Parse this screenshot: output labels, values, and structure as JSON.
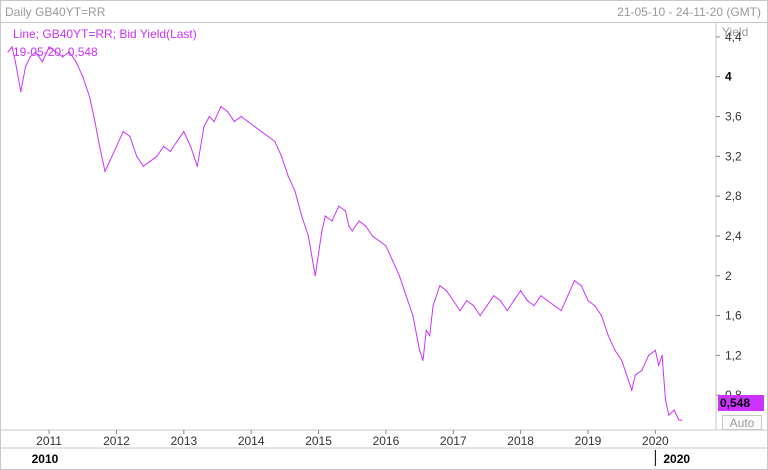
{
  "header": {
    "title": "Daily GB40YT=RR",
    "range": "21-05-10 - 24-11-20 (GMT)"
  },
  "legend": {
    "line1": "Line; GB40YT=RR; Bid Yield(Last)",
    "line2": "19-05-20; 0,548"
  },
  "last_value_badge": "0,548",
  "auto_button": "Auto",
  "colors": {
    "series": "#cc33ff",
    "badge": "#cc33ff"
  },
  "chart_data": {
    "type": "line",
    "ylabel": "Yield",
    "ylim": [
      0.45,
      4.55
    ],
    "yticks": [
      "4,4",
      "4",
      "3,6",
      "3,2",
      "2,8",
      "2,4",
      "2",
      "1,6",
      "1,2",
      "0,8"
    ],
    "ytick_values": [
      4.4,
      4.0,
      3.6,
      3.2,
      2.8,
      2.4,
      2.0,
      1.6,
      1.2,
      0.8
    ],
    "xlim": [
      2010.39,
      2020.9
    ],
    "xticks": [
      "2011",
      "2012",
      "2013",
      "2014",
      "2015",
      "2016",
      "2017",
      "2018",
      "2019",
      "2020"
    ],
    "xtick_values": [
      2011,
      2012,
      2013,
      2014,
      2015,
      2016,
      2017,
      2018,
      2019,
      2020
    ],
    "major_labels": [
      "2010",
      "2020"
    ],
    "series": [
      {
        "x": [
          2010.39,
          2010.45,
          2010.5,
          2010.58,
          2010.65,
          2010.72,
          2010.8,
          2010.9,
          2011.0,
          2011.1,
          2011.2,
          2011.3,
          2011.4,
          2011.5,
          2011.6,
          2011.68,
          2011.75,
          2011.83,
          2011.9,
          2012.0,
          2012.1,
          2012.2,
          2012.3,
          2012.4,
          2012.5,
          2012.6,
          2012.7,
          2012.8,
          2012.9,
          2013.0,
          2013.1,
          2013.2,
          2013.3,
          2013.38,
          2013.45,
          2013.55,
          2013.65,
          2013.75,
          2013.85,
          2013.95,
          2014.05,
          2014.15,
          2014.25,
          2014.35,
          2014.45,
          2014.55,
          2014.65,
          2014.75,
          2014.85,
          2014.95,
          2015.05,
          2015.1,
          2015.2,
          2015.3,
          2015.4,
          2015.45,
          2015.5,
          2015.6,
          2015.7,
          2015.8,
          2015.9,
          2016.0,
          2016.1,
          2016.2,
          2016.3,
          2016.4,
          2016.5,
          2016.55,
          2016.6,
          2016.65,
          2016.7,
          2016.8,
          2016.9,
          2017.0,
          2017.1,
          2017.2,
          2017.3,
          2017.4,
          2017.5,
          2017.6,
          2017.7,
          2017.8,
          2017.9,
          2018.0,
          2018.1,
          2018.2,
          2018.3,
          2018.4,
          2018.5,
          2018.6,
          2018.7,
          2018.8,
          2018.9,
          2019.0,
          2019.1,
          2019.2,
          2019.3,
          2019.4,
          2019.5,
          2019.6,
          2019.65,
          2019.7,
          2019.8,
          2019.9,
          2020.0,
          2020.05,
          2020.1,
          2020.15,
          2020.2,
          2020.28,
          2020.35,
          2020.39
        ],
        "y": [
          4.25,
          4.3,
          4.15,
          3.85,
          4.1,
          4.2,
          4.25,
          4.15,
          4.3,
          4.25,
          4.2,
          4.25,
          4.15,
          4.0,
          3.8,
          3.55,
          3.3,
          3.05,
          3.15,
          3.3,
          3.45,
          3.4,
          3.2,
          3.1,
          3.15,
          3.2,
          3.3,
          3.25,
          3.35,
          3.45,
          3.3,
          3.1,
          3.5,
          3.6,
          3.55,
          3.7,
          3.65,
          3.55,
          3.6,
          3.55,
          3.5,
          3.45,
          3.4,
          3.35,
          3.2,
          3.0,
          2.85,
          2.6,
          2.4,
          2.0,
          2.45,
          2.6,
          2.55,
          2.7,
          2.65,
          2.5,
          2.45,
          2.55,
          2.5,
          2.4,
          2.35,
          2.3,
          2.15,
          2.0,
          1.8,
          1.6,
          1.25,
          1.15,
          1.45,
          1.4,
          1.7,
          1.9,
          1.85,
          1.75,
          1.65,
          1.75,
          1.7,
          1.6,
          1.7,
          1.8,
          1.75,
          1.65,
          1.75,
          1.85,
          1.75,
          1.7,
          1.8,
          1.75,
          1.7,
          1.65,
          1.8,
          1.95,
          1.9,
          1.75,
          1.7,
          1.6,
          1.4,
          1.25,
          1.15,
          0.95,
          0.85,
          1.0,
          1.05,
          1.2,
          1.25,
          1.1,
          1.2,
          0.75,
          0.6,
          0.65,
          0.55,
          0.548
        ],
        "name": ""
      }
    ]
  }
}
